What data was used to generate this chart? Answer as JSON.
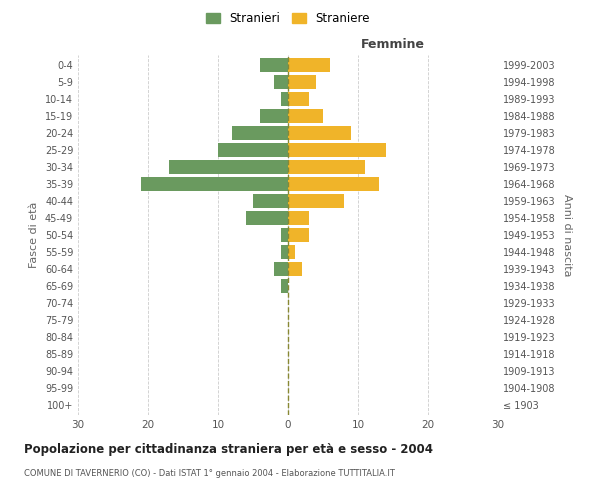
{
  "age_groups": [
    "100+",
    "95-99",
    "90-94",
    "85-89",
    "80-84",
    "75-79",
    "70-74",
    "65-69",
    "60-64",
    "55-59",
    "50-54",
    "45-49",
    "40-44",
    "35-39",
    "30-34",
    "25-29",
    "20-24",
    "15-19",
    "10-14",
    "5-9",
    "0-4"
  ],
  "birth_years": [
    "≤ 1903",
    "1904-1908",
    "1909-1913",
    "1914-1918",
    "1919-1923",
    "1924-1928",
    "1929-1933",
    "1934-1938",
    "1939-1943",
    "1944-1948",
    "1949-1953",
    "1954-1958",
    "1959-1963",
    "1964-1968",
    "1969-1973",
    "1974-1978",
    "1979-1983",
    "1984-1988",
    "1989-1993",
    "1994-1998",
    "1999-2003"
  ],
  "males": [
    0,
    0,
    0,
    0,
    0,
    0,
    0,
    1,
    2,
    1,
    1,
    6,
    5,
    21,
    17,
    10,
    8,
    4,
    1,
    2,
    4
  ],
  "females": [
    0,
    0,
    0,
    0,
    0,
    0,
    0,
    0,
    2,
    1,
    3,
    3,
    8,
    13,
    11,
    14,
    9,
    5,
    3,
    4,
    6
  ],
  "male_color": "#6a9a5f",
  "female_color": "#f0b429",
  "grid_color": "#cccccc",
  "title": "Popolazione per cittadinanza straniera per età e sesso - 2004",
  "subtitle": "COMUNE DI TAVERNERIO (CO) - Dati ISTAT 1° gennaio 2004 - Elaborazione TUTTITALIA.IT",
  "xlabel_right": "Femmine",
  "ylabel_left": "Fasce di età",
  "ylabel_right": "Anni di nascita",
  "legend_males": "Stranieri",
  "legend_females": "Straniere",
  "xlim": 30,
  "bar_height": 0.8
}
